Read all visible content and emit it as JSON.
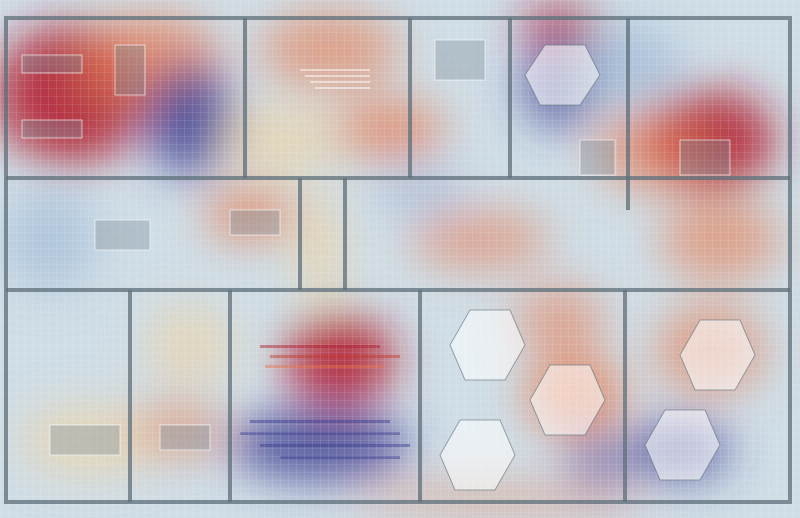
{
  "view": {
    "type": "floor-plan-heatmap",
    "palette": {
      "hot": "#b2182b",
      "warm": "#e6794f",
      "mild": "#f2d09b",
      "neutral": "#dde8ee",
      "cool": "#9cb6d6",
      "cold": "#3b3c8f"
    },
    "background": "#cfdde6",
    "wall_color": "#5d6f7a",
    "grid_color": "#ffffff"
  },
  "legend": null
}
